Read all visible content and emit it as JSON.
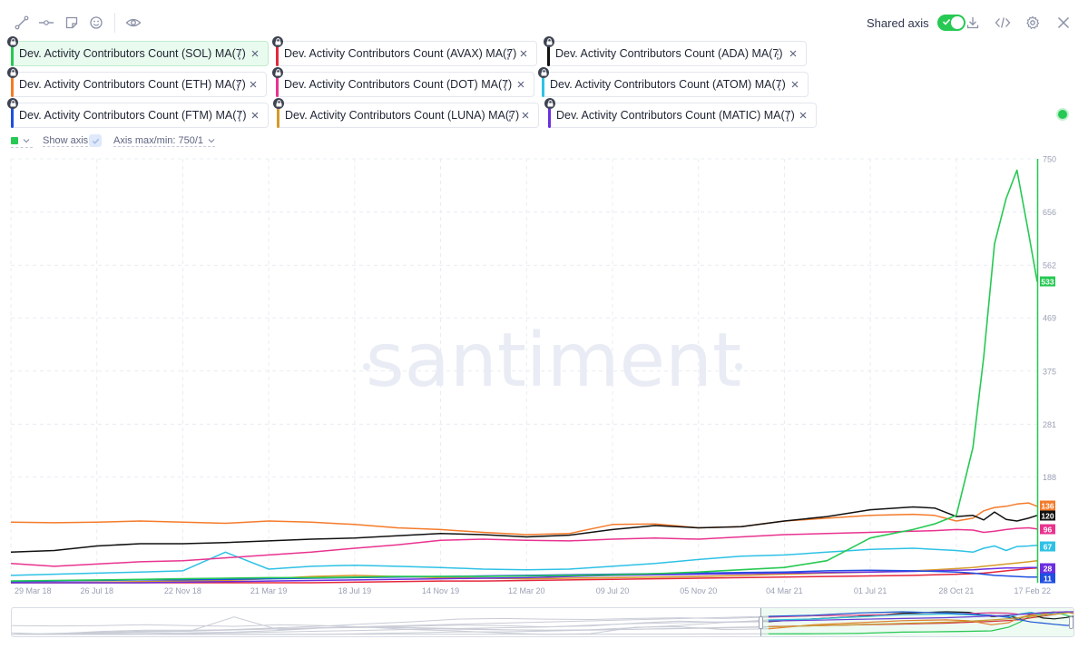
{
  "toolbar": {
    "icons": [
      "line-drawing-icon",
      "horizontal-line-icon",
      "note-icon",
      "emoji-icon",
      "eye-icon"
    ],
    "shared_axis_label": "Shared axis",
    "shared_axis_on": true,
    "right_icons": [
      "download-icon",
      "embed-code-icon",
      "settings-gear-icon",
      "close-icon"
    ]
  },
  "metrics": [
    {
      "label": "Dev. Activity Contributors Count (SOL) MA(7)",
      "color": "#26c953",
      "active": true
    },
    {
      "label": "Dev. Activity Contributors Count (AVAX) MA(7)",
      "color": "#e5283c",
      "active": false
    },
    {
      "label": "Dev. Activity Contributors Count (ADA) MA(7)",
      "color": "#111111",
      "active": false
    },
    {
      "label": "Dev. Activity Contributors Count (ETH) MA(7)",
      "color": "#f47b2a",
      "active": false
    },
    {
      "label": "Dev. Activity Contributors Count (DOT) MA(7)",
      "color": "#e8338f",
      "active": false
    },
    {
      "label": "Dev. Activity Contributors Count (ATOM) MA(7)",
      "color": "#2ec1e5",
      "active": false
    },
    {
      "label": "Dev. Activity Contributors Count (FTM) MA(7)",
      "color": "#1f4fe0",
      "active": false
    },
    {
      "label": "Dev. Activity Contributors Count (LUNA) MA(7)",
      "color": "#d69a2a",
      "active": false
    },
    {
      "label": "Dev. Activity Contributors Count (MATIC) MA(7)",
      "color": "#6b2fe0",
      "active": false
    }
  ],
  "settings": {
    "selected_color": "#26c953",
    "show_axis_label": "Show axis",
    "axis_maxmin_label": "Axis max/min: 750/1"
  },
  "watermark": "santiment",
  "chart_data": {
    "type": "line",
    "x_axis_labels": [
      "29 Mar 18",
      "26 Jul 18",
      "22 Nov 18",
      "21 Mar 19",
      "18 Jul 19",
      "14 Nov 19",
      "12 Mar 20",
      "09 Jul 20",
      "05 Nov 20",
      "04 Mar 21",
      "01 Jul 21",
      "28 Oct 21",
      "17 Feb 22"
    ],
    "y_axis_labels": [
      750,
      656,
      562,
      469,
      375,
      281,
      188
    ],
    "ylim": [
      1,
      750
    ],
    "x": [
      "2018-03-29",
      "2018-05-28",
      "2018-07-26",
      "2018-09-24",
      "2018-11-22",
      "2019-01-20",
      "2019-03-21",
      "2019-05-19",
      "2019-07-18",
      "2019-09-15",
      "2019-11-14",
      "2020-01-12",
      "2020-03-12",
      "2020-05-10",
      "2020-07-09",
      "2020-09-06",
      "2020-11-05",
      "2021-01-03",
      "2021-03-04",
      "2021-05-02",
      "2021-07-01",
      "2021-08-29",
      "2021-09-28",
      "2021-10-28",
      "2021-11-20",
      "2021-12-05",
      "2021-12-20",
      "2022-01-05",
      "2022-01-20",
      "2022-02-05",
      "2022-02-17"
    ],
    "series": [
      {
        "name": "Dev. Activity Contributors Count (SOL) MA(7)",
        "color": "#26c953",
        "last_value_label": "533",
        "values": [
          4,
          5,
          6,
          7,
          8,
          9,
          10,
          10,
          11,
          12,
          12,
          12,
          13,
          14,
          15,
          17,
          20,
          24,
          28,
          40,
          80,
          95,
          105,
          120,
          240,
          400,
          600,
          680,
          730,
          620,
          533
        ]
      },
      {
        "name": "Dev. Activity Contributors Count (AVAX) MA(7)",
        "color": "#e5283c",
        "last_value_label": "",
        "values": [
          1,
          1,
          1,
          1,
          1,
          1,
          1,
          1,
          2,
          3,
          4,
          4,
          5,
          6,
          7,
          8,
          9,
          10,
          11,
          12,
          13,
          14,
          15,
          16,
          17,
          18,
          20,
          22,
          24,
          26,
          27
        ]
      },
      {
        "name": "Dev. Activity Contributors Count (ADA) MA(7)",
        "color": "#111111",
        "last_value_label": "120",
        "values": [
          55,
          58,
          66,
          70,
          70,
          72,
          75,
          78,
          80,
          84,
          88,
          86,
          82,
          85,
          95,
          102,
          98,
          100,
          110,
          118,
          130,
          135,
          133,
          118,
          120,
          112,
          126,
          113,
          110,
          115,
          120
        ]
      },
      {
        "name": "Dev. Activity Contributors Count (ETH) MA(7)",
        "color": "#f47b2a",
        "last_value_label": "136",
        "values": [
          108,
          107,
          108,
          110,
          108,
          106,
          110,
          108,
          104,
          98,
          95,
          90,
          86,
          88,
          104,
          105,
          98,
          100,
          110,
          115,
          120,
          122,
          120,
          110,
          115,
          128,
          134,
          136,
          140,
          142,
          136
        ]
      },
      {
        "name": "Dev. Activity Contributors Count (DOT) MA(7)",
        "color": "#e8338f",
        "last_value_label": "96",
        "values": [
          35,
          30,
          34,
          38,
          40,
          45,
          50,
          55,
          62,
          68,
          76,
          78,
          76,
          75,
          78,
          80,
          78,
          82,
          86,
          88,
          90,
          92,
          93,
          95,
          94,
          90,
          92,
          95,
          97,
          98,
          96
        ]
      },
      {
        "name": "Dev. Activity Contributors Count (ATOM) MA(7)",
        "color": "#2ec1e5",
        "last_value_label": "67",
        "values": [
          14,
          16,
          18,
          20,
          22,
          55,
          25,
          30,
          32,
          30,
          28,
          25,
          24,
          25,
          30,
          35,
          42,
          48,
          50,
          55,
          60,
          62,
          60,
          58,
          55,
          62,
          66,
          58,
          65,
          66,
          67
        ]
      },
      {
        "name": "Dev. Activity Contributors Count (FTM) MA(7)",
        "color": "#1f4fe0",
        "last_value_label": "11",
        "values": [
          3,
          4,
          5,
          6,
          6,
          7,
          8,
          9,
          10,
          11,
          12,
          13,
          14,
          15,
          16,
          17,
          18,
          19,
          20,
          22,
          23,
          22,
          21,
          20,
          18,
          16,
          14,
          13,
          12,
          11,
          11
        ]
      },
      {
        "name": "Dev. Activity Contributors Count (LUNA) MA(7)",
        "color": "#d69a2a",
        "last_value_label": "",
        "values": [
          1,
          1,
          2,
          3,
          4,
          5,
          8,
          12,
          14,
          12,
          10,
          9,
          8,
          9,
          10,
          11,
          12,
          14,
          16,
          18,
          20,
          22,
          24,
          26,
          28,
          30,
          32,
          34,
          36,
          38,
          40
        ]
      },
      {
        "name": "Dev. Activity Contributors Count (MATIC) MA(7)",
        "color": "#6b2fe0",
        "last_value_label": "28",
        "values": [
          1,
          1,
          1,
          1,
          2,
          3,
          4,
          5,
          6,
          7,
          8,
          9,
          10,
          12,
          14,
          15,
          16,
          17,
          18,
          19,
          20,
          21,
          22,
          23,
          24,
          25,
          26,
          27,
          27,
          28,
          28
        ]
      }
    ]
  }
}
